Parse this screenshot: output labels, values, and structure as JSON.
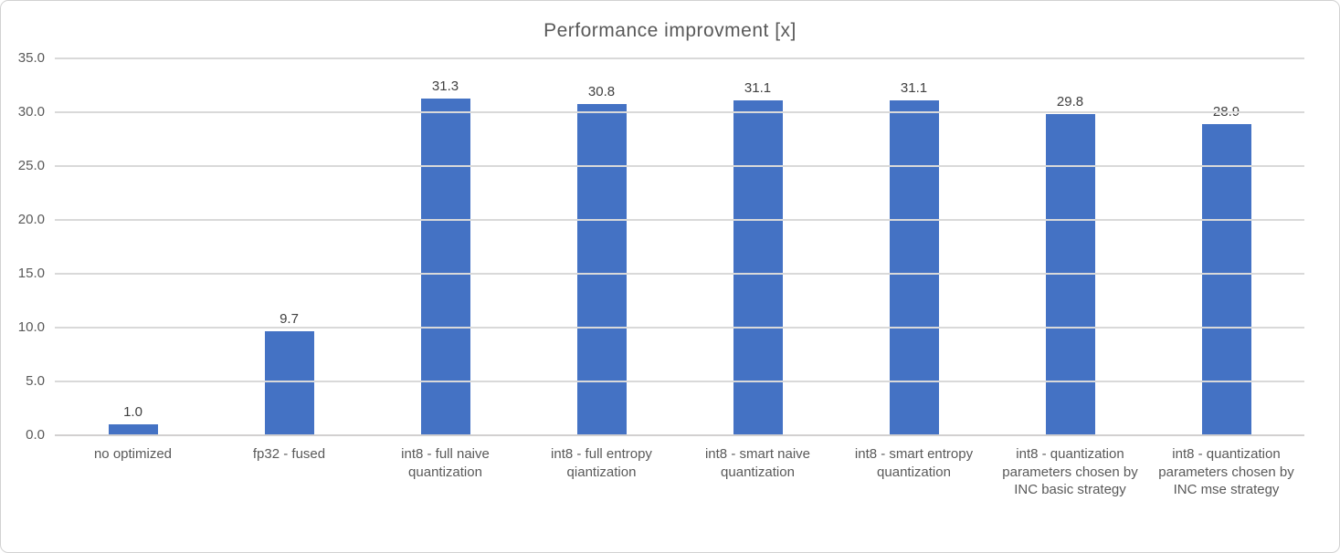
{
  "chart_data": {
    "type": "bar",
    "title": "Performance improvment [x]",
    "categories": [
      "no optimized",
      "fp32 - fused",
      "int8 - full naive quantization",
      "int8 - full entropy qiantization",
      "int8 - smart naive quantization",
      "int8 - smart entropy quantization",
      "int8 - quantization parameters chosen by INC basic strategy",
      "int8 - quantization parameters chosen by INC mse strategy"
    ],
    "values": [
      1.0,
      9.7,
      31.3,
      30.8,
      31.1,
      31.1,
      29.8,
      28.9
    ],
    "value_labels": [
      "1.0",
      "9.7",
      "31.3",
      "30.8",
      "31.1",
      "31.1",
      "29.8",
      "28.9"
    ],
    "xlabel": "",
    "ylabel": "",
    "ylim": [
      0,
      35
    ],
    "ytick_values": [
      0,
      5,
      10,
      15,
      20,
      25,
      30,
      35
    ],
    "yticks": [
      "0.0",
      "5.0",
      "10.0",
      "15.0",
      "20.0",
      "25.0",
      "30.0",
      "35.0"
    ],
    "grid": true,
    "legend": false,
    "bar_color": "#4472C4",
    "gridline_color": "#D9D9D9",
    "axis_line_color": "#D2D0D0",
    "title_color": "#595959",
    "axis_text_color": "#595959",
    "value_label_color": "#404040",
    "frame_border_color": "#D2D2D2",
    "background_color": "#FFFFFF"
  }
}
